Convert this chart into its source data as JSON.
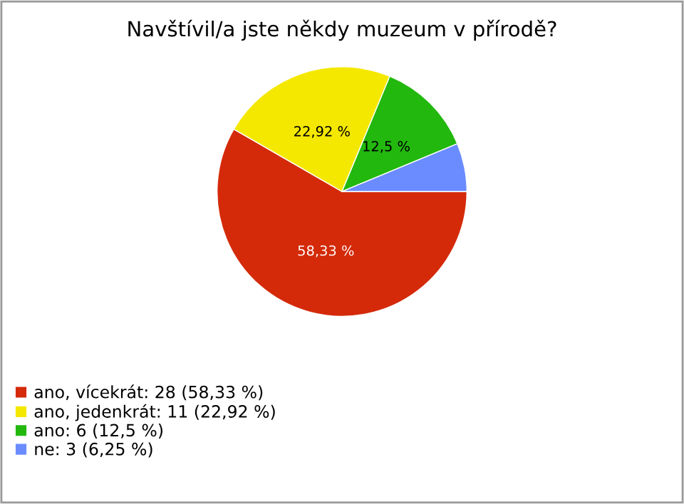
{
  "chart_data": {
    "type": "pie",
    "title": "Navštívil/a jste někdy muzeum v přírodě?",
    "categories": [
      "ano, vícekrát: 28 (58,33 %)",
      "ano, jedenkrát: 11 (22,92 %)",
      "ano: 6 (12,5 %)",
      "ne: 3 (6,25 %)"
    ],
    "values": [
      58.33,
      22.92,
      12.5,
      6.25
    ],
    "colors": [
      "#d42a0a",
      "#f5e800",
      "#22b80e",
      "#6b8cff"
    ],
    "value_labels": [
      "58,33 %",
      "22,92 %",
      "12,5 %",
      null
    ],
    "legend": "bottom left"
  }
}
